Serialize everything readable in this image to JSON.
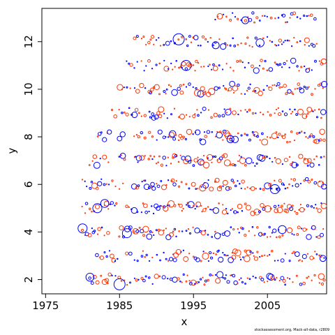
{
  "chart_data": {
    "type": "scatter",
    "title": "",
    "xlabel": "x",
    "ylabel": "y",
    "xlim": [
      1974.5,
      2013.0
    ],
    "ylim": [
      1.4,
      13.4
    ],
    "x_ticks": [
      1975,
      1985,
      1995,
      2005
    ],
    "y_ticks": [
      2,
      4,
      6,
      8,
      10,
      12
    ],
    "grid": false,
    "legend": "none",
    "colors": {
      "positive": "#0000ff",
      "negative": "#ff3300"
    },
    "ages": [
      2,
      3,
      4,
      5,
      6,
      7,
      8,
      9,
      10,
      11,
      12,
      13
    ],
    "age_ranges": [
      [
        1981,
        2012
      ],
      [
        1982,
        2012
      ],
      [
        1980,
        2012
      ],
      [
        1980,
        2012
      ],
      [
        1980,
        2012
      ],
      [
        1981,
        2012
      ],
      [
        1982,
        2012
      ],
      [
        1984,
        2012
      ],
      [
        1985,
        2012
      ],
      [
        1986,
        2012
      ],
      [
        1987,
        2011
      ],
      [
        1998,
        2011
      ]
    ],
    "notable_points": [
      {
        "x": 1985.0,
        "y": 1.8,
        "sign": "positive",
        "magnitude": 1.0
      },
      {
        "x": 1980.0,
        "y": 4.15,
        "sign": "positive",
        "magnitude": 0.8
      },
      {
        "x": 1982.0,
        "y": 5.0,
        "sign": "positive",
        "magnitude": 0.8
      },
      {
        "x": 1983.0,
        "y": 5.2,
        "sign": "positive",
        "magnitude": 0.7
      },
      {
        "x": 1981.0,
        "y": 2.1,
        "sign": "positive",
        "magnitude": 0.7
      },
      {
        "x": 1986.0,
        "y": 3.95,
        "sign": "positive",
        "magnitude": 0.8
      },
      {
        "x": 1993.0,
        "y": 12.1,
        "sign": "positive",
        "magnitude": 1.0
      },
      {
        "x": 1994.0,
        "y": 11.0,
        "sign": "positive",
        "magnitude": 0.9
      },
      {
        "x": 2002.0,
        "y": 12.9,
        "sign": "positive",
        "magnitude": 0.6
      },
      {
        "x": 2004.0,
        "y": 11.95,
        "sign": "positive",
        "magnitude": 0.7
      },
      {
        "x": 2006.0,
        "y": 5.8,
        "sign": "positive",
        "magnitude": 0.8
      },
      {
        "x": 2007.0,
        "y": 4.1,
        "sign": "positive",
        "magnitude": 0.7
      },
      {
        "x": 1998.0,
        "y": 11.85,
        "sign": "positive",
        "magnitude": 0.6
      },
      {
        "x": 2000.0,
        "y": 7.9,
        "sign": "positive",
        "magnitude": 0.6
      }
    ]
  },
  "credit": "stockassessment.org, Mack-all-data, r2809"
}
